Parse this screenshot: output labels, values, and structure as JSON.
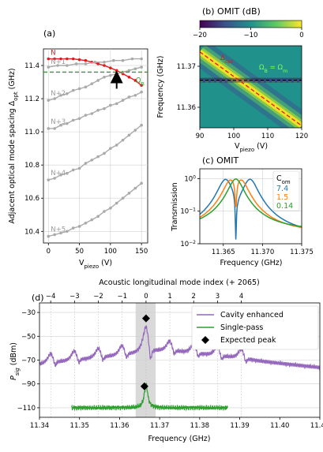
{
  "panel_a": {
    "label": "(a)",
    "ylabel": "Adjacent optical mode spacing Δ",
    "ylabel_sub": "opt",
    "ylabel_unit": " (GHz)",
    "xlabel": "V",
    "xlabel_sub": "piezo",
    "xlabel_unit": " (V)",
    "mode_labels": [
      "N",
      "N+1",
      "N+2",
      "N+3",
      "N+4",
      "N+5"
    ],
    "omega_label": "Ω",
    "omega_sub": "B"
  },
  "panel_b": {
    "label": "(b) OMIT (dB)",
    "colorbar_ticks": [
      "−20",
      "−10",
      "0"
    ],
    "ylabel": "Frequency (GHz)",
    "xlabel": "V",
    "xlabel_sub": "piezo",
    "xlabel_unit": " (V)",
    "delta_label": "Δ",
    "delta_sub": "opt",
    "eq_label": "Ω",
    "eq_sub1": "B",
    "eq_mid": " = Ω",
    "eq_sub2": "m"
  },
  "panel_c": {
    "label": "(c) OMIT",
    "ylabel": "Transmission",
    "xlabel": "Frequency (GHz)",
    "legend_title": "C",
    "legend_title_sub": "om",
    "legend_items": [
      {
        "label": "7.4",
        "color": "#1f77b4"
      },
      {
        "label": "1.5",
        "color": "#ff7f0e"
      },
      {
        "label": "0.14",
        "color": "#2ca02c"
      }
    ]
  },
  "panel_d": {
    "label": "(d)",
    "top_xlabel": "Acoustic longitudinal mode index (+ 2065)",
    "xlabel": "Frequency (GHz)",
    "ylabel": "P",
    "ylabel_sub": "sig",
    "ylabel_unit": " (dBm)",
    "legend": [
      "Cavity enhanced",
      "Single-pass",
      "Expected peak"
    ]
  },
  "chart_data": [
    {
      "type": "line",
      "panel": "a",
      "xlim": [
        -8,
        160
      ],
      "ylim": [
        10.33,
        11.5
      ],
      "x_ticks": [
        0,
        50,
        100,
        150
      ],
      "y_ticks": [
        10.4,
        10.6,
        10.8,
        11.0,
        11.2,
        11.4
      ],
      "grid": true,
      "hline": {
        "y": 11.36,
        "color": "#2ca02c",
        "style": "dashed"
      },
      "arrow": {
        "x": 110,
        "y_from": 11.26,
        "y_to": 11.35
      },
      "series": [
        {
          "label": "N",
          "color": "#e41a1c",
          "points": [
            [
              0,
              11.44
            ],
            [
              10,
              11.44
            ],
            [
              20,
              11.44
            ],
            [
              30,
              11.44
            ],
            [
              40,
              11.44
            ],
            [
              50,
              11.435
            ],
            [
              60,
              11.43
            ],
            [
              70,
              11.42
            ],
            [
              80,
              11.41
            ],
            [
              90,
              11.4
            ],
            [
              100,
              11.385
            ],
            [
              110,
              11.37
            ],
            [
              120,
              11.35
            ],
            [
              130,
              11.33
            ],
            [
              140,
              11.31
            ],
            [
              150,
              11.28
            ]
          ]
        },
        {
          "label": "N+1",
          "color": "#aaaaaa",
          "points": [
            [
              0,
              11.39
            ],
            [
              15,
              11.4
            ],
            [
              30,
              11.4
            ],
            [
              45,
              11.41
            ],
            [
              60,
              11.41
            ],
            [
              75,
              11.42
            ],
            [
              90,
              11.42
            ],
            [
              105,
              11.43
            ],
            [
              120,
              11.43
            ],
            [
              135,
              11.44
            ],
            [
              150,
              11.44
            ]
          ]
        },
        {
          "label": "N+2",
          "color": "#aaaaaa",
          "points": [
            [
              0,
              11.19
            ],
            [
              10,
              11.2
            ],
            [
              20,
              11.22
            ],
            [
              30,
              11.23
            ],
            [
              40,
              11.25
            ],
            [
              50,
              11.26
            ],
            [
              60,
              11.27
            ],
            [
              70,
              11.29
            ],
            [
              80,
              11.31
            ],
            [
              90,
              11.33
            ],
            [
              100,
              11.34
            ],
            [
              110,
              11.35
            ],
            [
              120,
              11.36
            ],
            [
              130,
              11.37
            ],
            [
              140,
              11.38
            ],
            [
              150,
              11.39
            ]
          ]
        },
        {
          "label": "N+3",
          "color": "#aaaaaa",
          "points": [
            [
              0,
              11.02
            ],
            [
              10,
              11.02
            ],
            [
              20,
              11.04
            ],
            [
              30,
              11.05
            ],
            [
              40,
              11.07
            ],
            [
              50,
              11.08
            ],
            [
              60,
              11.1
            ],
            [
              70,
              11.11
            ],
            [
              80,
              11.13
            ],
            [
              90,
              11.14
            ],
            [
              100,
              11.16
            ],
            [
              110,
              11.17
            ],
            [
              120,
              11.19
            ],
            [
              130,
              11.21
            ],
            [
              140,
              11.22
            ],
            [
              150,
              11.24
            ]
          ]
        },
        {
          "label": "N+4",
          "color": "#aaaaaa",
          "points": [
            [
              0,
              10.71
            ],
            [
              10,
              10.72
            ],
            [
              20,
              10.74
            ],
            [
              30,
              10.75
            ],
            [
              40,
              10.77
            ],
            [
              50,
              10.78
            ],
            [
              60,
              10.81
            ],
            [
              70,
              10.83
            ],
            [
              80,
              10.85
            ],
            [
              90,
              10.87
            ],
            [
              100,
              10.9
            ],
            [
              110,
              10.92
            ],
            [
              120,
              10.95
            ],
            [
              130,
              10.98
            ],
            [
              140,
              11.01
            ],
            [
              150,
              11.04
            ]
          ]
        },
        {
          "label": "N+5",
          "color": "#aaaaaa",
          "points": [
            [
              0,
              10.37
            ],
            [
              10,
              10.38
            ],
            [
              20,
              10.39
            ],
            [
              30,
              10.4
            ],
            [
              40,
              10.42
            ],
            [
              50,
              10.43
            ],
            [
              60,
              10.45
            ],
            [
              70,
              10.47
            ],
            [
              80,
              10.49
            ],
            [
              90,
              10.52
            ],
            [
              100,
              10.54
            ],
            [
              110,
              10.57
            ],
            [
              120,
              10.6
            ],
            [
              130,
              10.63
            ],
            [
              140,
              10.66
            ],
            [
              150,
              10.69
            ]
          ]
        }
      ]
    },
    {
      "type": "heatmap",
      "panel": "b",
      "xlim": [
        90,
        120
      ],
      "ylim": [
        11.355,
        11.375
      ],
      "x_ticks": [
        90,
        100,
        110,
        120
      ],
      "y_ticks": [
        11.36,
        11.37
      ],
      "colorbar_range": [
        -20,
        0
      ],
      "delta_opt_line": [
        [
          90,
          11.3735
        ],
        [
          120,
          11.3555
        ]
      ],
      "omega_m_level": 11.3666
    },
    {
      "type": "line",
      "panel": "c",
      "xlim": [
        11.362,
        11.375
      ],
      "ylim_log": [
        0.01,
        2
      ],
      "x_ticks": [
        11.365,
        11.37,
        11.375
      ],
      "y_ticks": [
        "10^0",
        "10^-1",
        "10^-2"
      ],
      "series": [
        {
          "name": "7.4",
          "color": "#1f77b4",
          "resonances": [
            11.3653,
            11.3684
          ],
          "dip": 11.3666,
          "dip_depth": 0.015
        },
        {
          "name": "1.5",
          "color": "#ff7f0e",
          "resonances": [
            11.366,
            11.3672
          ],
          "dip": 11.3666,
          "dip_depth": 0.15
        },
        {
          "name": "0.14",
          "color": "#2ca02c",
          "resonances": [
            11.3666
          ],
          "dip": null,
          "dip_depth": null
        }
      ]
    },
    {
      "type": "line",
      "panel": "d",
      "xlim": [
        11.34,
        11.41
      ],
      "ylim": [
        -118,
        -22
      ],
      "x_ticks": [
        11.34,
        11.35,
        11.36,
        11.37,
        11.38,
        11.39,
        11.4,
        11.41
      ],
      "y_ticks": [
        -30,
        -50,
        -70,
        -90,
        -110
      ],
      "top_ticks": [
        -4,
        -3,
        -2,
        -1,
        0,
        1,
        2,
        3,
        4
      ],
      "top_tick_spacing_ghz": 0.00595,
      "shaded_band": [
        11.364,
        11.369
      ],
      "expected_peak": [
        [
          11.3666,
          -35
        ],
        [
          11.3662,
          -92
        ]
      ],
      "series": [
        {
          "name": "Cavity enhanced",
          "color": "#9467bd",
          "peaks": [
            11.3428,
            11.3487,
            11.3547,
            11.3606,
            11.3666,
            11.3725,
            11.3785,
            11.3844,
            11.3904
          ],
          "baseline": -63
        },
        {
          "name": "Single-pass",
          "color": "#2ca02c",
          "xrange": [
            11.348,
            11.387
          ],
          "baseline": -110,
          "peak": 11.3666,
          "peak_level": -90
        }
      ]
    }
  ]
}
